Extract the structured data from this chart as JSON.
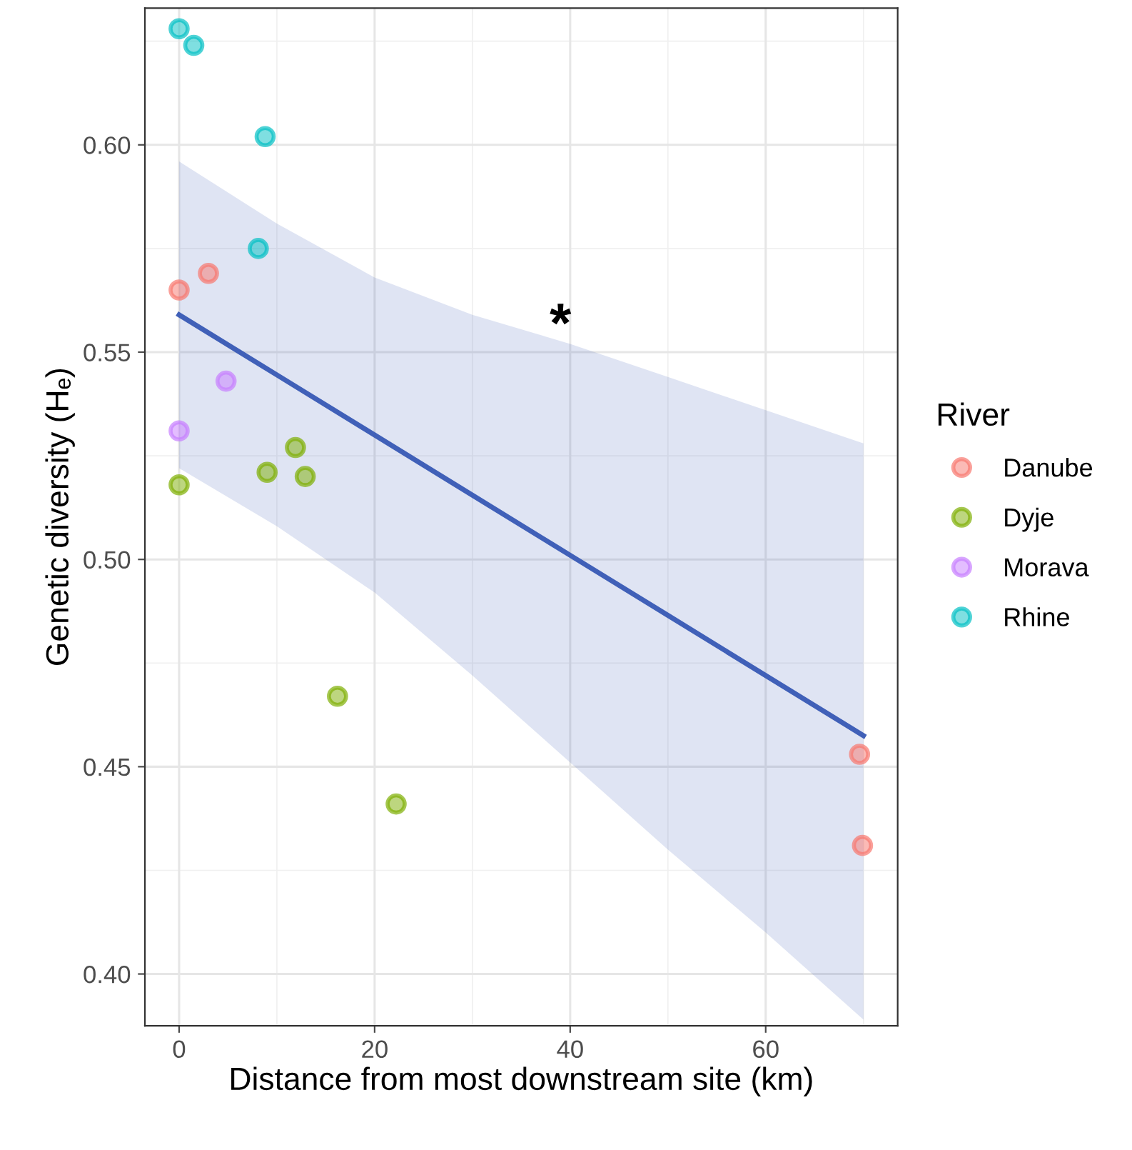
{
  "chart_data": {
    "type": "scatter",
    "xlabel": "Distance from most downstream site (km)",
    "ylabel": "Genetic diversity (Hₑ)",
    "legend_title": "River",
    "legend": "right",
    "xlim": [
      -3.5,
      73.5
    ],
    "ylim": [
      0.3875,
      0.633
    ],
    "xticks": [
      0,
      20,
      40,
      60
    ],
    "yticks": [
      {
        "value": 0.4,
        "label": "0.40"
      },
      {
        "value": 0.45,
        "label": "0.45"
      },
      {
        "value": 0.5,
        "label": "0.50"
      },
      {
        "value": 0.55,
        "label": "0.55"
      },
      {
        "value": 0.6,
        "label": "0.60"
      }
    ],
    "grid": true,
    "marker": "circle",
    "annotations": [
      "*"
    ],
    "series": [
      {
        "name": "Danube",
        "color": "#f8766d",
        "x": [
          0,
          3.0,
          69.6,
          69.9
        ],
        "values": [
          0.565,
          0.569,
          0.453,
          0.431
        ]
      },
      {
        "name": "Dyje",
        "color": "#7cae00",
        "x": [
          0,
          9.0,
          11.9,
          12.9,
          16.2,
          22.2
        ],
        "values": [
          0.518,
          0.521,
          0.527,
          0.52,
          0.467,
          0.441
        ]
      },
      {
        "name": "Morava",
        "color": "#c77cff",
        "x": [
          0,
          4.8
        ],
        "values": [
          0.531,
          0.543
        ]
      },
      {
        "name": "Rhine",
        "color": "#00bfc4",
        "x": [
          0,
          1.5,
          8.8,
          8.1
        ],
        "values": [
          0.628,
          0.624,
          0.602,
          0.575
        ]
      },
      {
        "type": "line",
        "color": "#4060b8",
        "marker": "none",
        "x": [
          0,
          10,
          20,
          30,
          40,
          50,
          60,
          70
        ],
        "values": [
          0.559,
          0.5445,
          0.53,
          0.5155,
          0.501,
          0.4865,
          0.472,
          0.4575
        ],
        "upper": [
          0.596,
          0.581,
          0.568,
          0.559,
          0.552,
          0.544,
          0.536,
          0.528
        ],
        "lower": [
          0.522,
          0.508,
          0.492,
          0.472,
          0.451,
          0.43,
          0.41,
          0.389
        ]
      }
    ]
  }
}
